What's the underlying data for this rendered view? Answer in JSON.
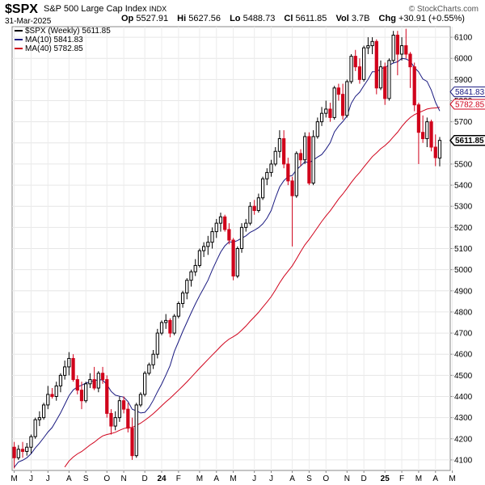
{
  "header": {
    "symbol": "$SPX",
    "description": "S&P 500 Large Cap Index",
    "exchange": "INDX",
    "brand": "© StockCharts.com",
    "date": "31-Mar-2025",
    "ohlc": [
      {
        "label": "Op",
        "value": "5527.91"
      },
      {
        "label": "Hi",
        "value": "5627.56"
      },
      {
        "label": "Lo",
        "value": "5488.73"
      },
      {
        "label": "Cl",
        "value": "5611.85"
      },
      {
        "label": "Vol",
        "value": "3.7B"
      },
      {
        "label": "Chg",
        "value": "+30.91 (+0.55%)"
      }
    ]
  },
  "legend": [
    {
      "label": "$SPX (Weekly) 5611.85",
      "color": "#000000"
    },
    {
      "label": "MA(10) 5841.83",
      "color": "#1a1a80"
    },
    {
      "label": "MA(40) 5782.85",
      "color": "#d0021b"
    }
  ],
  "chart_data": {
    "type": "candlestick",
    "ylim": [
      4050,
      6150
    ],
    "y_ticks": [
      4100,
      4200,
      4300,
      4400,
      4500,
      4600,
      4700,
      4800,
      4900,
      5000,
      5100,
      5200,
      5300,
      5400,
      5500,
      5600,
      5700,
      5800,
      5900,
      6000,
      6100
    ],
    "y_tick_labels": [
      "4100",
      "4200",
      "4300",
      "4400",
      "4500",
      "4600",
      "4700",
      "4800",
      "4900",
      "5000",
      "5100",
      "5200",
      "5300",
      "5400",
      "5500",
      "5600",
      "5700",
      "5800",
      "5900",
      "6000",
      "6100"
    ],
    "x_ticks": [
      {
        "week": 0,
        "label": "M"
      },
      {
        "week": 4,
        "label": "J"
      },
      {
        "week": 8,
        "label": "J"
      },
      {
        "week": 13,
        "label": "A"
      },
      {
        "week": 17,
        "label": "S"
      },
      {
        "week": 22,
        "label": "O"
      },
      {
        "week": 26,
        "label": "N"
      },
      {
        "week": 31,
        "label": "D"
      },
      {
        "week": 35,
        "label": "24"
      },
      {
        "week": 39,
        "label": "F"
      },
      {
        "week": 44,
        "label": "M"
      },
      {
        "week": 48,
        "label": "A"
      },
      {
        "week": 52,
        "label": "M"
      },
      {
        "week": 57,
        "label": "J"
      },
      {
        "week": 61,
        "label": "J"
      },
      {
        "week": 66,
        "label": "A"
      },
      {
        "week": 70,
        "label": "S"
      },
      {
        "week": 74,
        "label": "O"
      },
      {
        "week": 79,
        "label": "N"
      },
      {
        "week": 83,
        "label": "D"
      },
      {
        "week": 88,
        "label": "25"
      },
      {
        "week": 92,
        "label": "F"
      },
      {
        "week": 96,
        "label": "M"
      },
      {
        "week": 100,
        "label": "A"
      },
      {
        "week": 104,
        "label": "M"
      }
    ],
    "price_tags": [
      {
        "value": 5841.83,
        "label": "5841.83",
        "color": "#1a1a80"
      },
      {
        "value": 5782.85,
        "label": "5782.85",
        "color": "#d0021b"
      },
      {
        "value": 5611.85,
        "label": "5611.85",
        "color": "#000000"
      }
    ],
    "candles": [
      {
        "o": 4160,
        "h": 4185,
        "l": 4060,
        "c": 4110
      },
      {
        "o": 4110,
        "h": 4170,
        "l": 4100,
        "c": 4150
      },
      {
        "o": 4150,
        "h": 4185,
        "l": 4110,
        "c": 4140
      },
      {
        "o": 4140,
        "h": 4180,
        "l": 4120,
        "c": 4160
      },
      {
        "o": 4160,
        "h": 4220,
        "l": 4130,
        "c": 4210
      },
      {
        "o": 4210,
        "h": 4300,
        "l": 4200,
        "c": 4290
      },
      {
        "o": 4290,
        "h": 4330,
        "l": 4260,
        "c": 4300
      },
      {
        "o": 4300,
        "h": 4370,
        "l": 4290,
        "c": 4360
      },
      {
        "o": 4360,
        "h": 4450,
        "l": 4340,
        "c": 4410
      },
      {
        "o": 4410,
        "h": 4440,
        "l": 4390,
        "c": 4400
      },
      {
        "o": 4400,
        "h": 4470,
        "l": 4380,
        "c": 4450
      },
      {
        "o": 4450,
        "h": 4510,
        "l": 4420,
        "c": 4500
      },
      {
        "o": 4500,
        "h": 4570,
        "l": 4480,
        "c": 4540
      },
      {
        "o": 4540,
        "h": 4610,
        "l": 4500,
        "c": 4580
      },
      {
        "o": 4580,
        "h": 4600,
        "l": 4470,
        "c": 4480
      },
      {
        "o": 4480,
        "h": 4500,
        "l": 4410,
        "c": 4430
      },
      {
        "o": 4430,
        "h": 4470,
        "l": 4340,
        "c": 4380
      },
      {
        "o": 4380,
        "h": 4470,
        "l": 4370,
        "c": 4460
      },
      {
        "o": 4460,
        "h": 4510,
        "l": 4440,
        "c": 4480
      },
      {
        "o": 4480,
        "h": 4540,
        "l": 4430,
        "c": 4440
      },
      {
        "o": 4440,
        "h": 4520,
        "l": 4420,
        "c": 4510
      },
      {
        "o": 4510,
        "h": 4540,
        "l": 4460,
        "c": 4480
      },
      {
        "o": 4480,
        "h": 4500,
        "l": 4300,
        "c": 4320
      },
      {
        "o": 4320,
        "h": 4340,
        "l": 4220,
        "c": 4260
      },
      {
        "o": 4260,
        "h": 4330,
        "l": 4240,
        "c": 4300
      },
      {
        "o": 4300,
        "h": 4400,
        "l": 4280,
        "c": 4380
      },
      {
        "o": 4380,
        "h": 4400,
        "l": 4320,
        "c": 4340
      },
      {
        "o": 4340,
        "h": 4370,
        "l": 4230,
        "c": 4250
      },
      {
        "o": 4250,
        "h": 4300,
        "l": 4100,
        "c": 4120
      },
      {
        "o": 4120,
        "h": 4370,
        "l": 4110,
        "c": 4360
      },
      {
        "o": 4360,
        "h": 4420,
        "l": 4350,
        "c": 4410
      },
      {
        "o": 4410,
        "h": 4520,
        "l": 4400,
        "c": 4510
      },
      {
        "o": 4510,
        "h": 4560,
        "l": 4500,
        "c": 4550
      },
      {
        "o": 4550,
        "h": 4620,
        "l": 4530,
        "c": 4600
      },
      {
        "o": 4600,
        "h": 4720,
        "l": 4580,
        "c": 4700
      },
      {
        "o": 4700,
        "h": 4760,
        "l": 4690,
        "c": 4750
      },
      {
        "o": 4750,
        "h": 4790,
        "l": 4720,
        "c": 4760
      },
      {
        "o": 4760,
        "h": 4770,
        "l": 4680,
        "c": 4700
      },
      {
        "o": 4700,
        "h": 4790,
        "l": 4690,
        "c": 4780
      },
      {
        "o": 4780,
        "h": 4850,
        "l": 4770,
        "c": 4840
      },
      {
        "o": 4840,
        "h": 4900,
        "l": 4820,
        "c": 4890
      },
      {
        "o": 4890,
        "h": 4960,
        "l": 4860,
        "c": 4950
      },
      {
        "o": 4950,
        "h": 5000,
        "l": 4920,
        "c": 4990
      },
      {
        "o": 4990,
        "h": 5050,
        "l": 4970,
        "c": 5020
      },
      {
        "o": 5020,
        "h": 5100,
        "l": 5010,
        "c": 5090
      },
      {
        "o": 5090,
        "h": 5130,
        "l": 5060,
        "c": 5110
      },
      {
        "o": 5110,
        "h": 5160,
        "l": 5070,
        "c": 5130
      },
      {
        "o": 5130,
        "h": 5200,
        "l": 5100,
        "c": 5180
      },
      {
        "o": 5180,
        "h": 5240,
        "l": 5150,
        "c": 5220
      },
      {
        "o": 5220,
        "h": 5270,
        "l": 5180,
        "c": 5250
      },
      {
        "o": 5250,
        "h": 5260,
        "l": 5180,
        "c": 5190
      },
      {
        "o": 5190,
        "h": 5220,
        "l": 5120,
        "c": 5140
      },
      {
        "o": 5140,
        "h": 5150,
        "l": 4950,
        "c": 4970
      },
      {
        "o": 4970,
        "h": 5110,
        "l": 4960,
        "c": 5100
      },
      {
        "o": 5100,
        "h": 5220,
        "l": 5080,
        "c": 5200
      },
      {
        "o": 5200,
        "h": 5240,
        "l": 5180,
        "c": 5220
      },
      {
        "o": 5220,
        "h": 5320,
        "l": 5210,
        "c": 5300
      },
      {
        "o": 5300,
        "h": 5330,
        "l": 5260,
        "c": 5280
      },
      {
        "o": 5280,
        "h": 5360,
        "l": 5270,
        "c": 5340
      },
      {
        "o": 5340,
        "h": 5440,
        "l": 5330,
        "c": 5430
      },
      {
        "o": 5430,
        "h": 5480,
        "l": 5400,
        "c": 5460
      },
      {
        "o": 5460,
        "h": 5520,
        "l": 5440,
        "c": 5500
      },
      {
        "o": 5500,
        "h": 5580,
        "l": 5490,
        "c": 5560
      },
      {
        "o": 5560,
        "h": 5660,
        "l": 5530,
        "c": 5620
      },
      {
        "o": 5620,
        "h": 5660,
        "l": 5480,
        "c": 5500
      },
      {
        "o": 5500,
        "h": 5530,
        "l": 5400,
        "c": 5420
      },
      {
        "o": 5420,
        "h": 5440,
        "l": 5110,
        "c": 5350
      },
      {
        "o": 5350,
        "h": 5560,
        "l": 5340,
        "c": 5550
      },
      {
        "o": 5550,
        "h": 5570,
        "l": 5490,
        "c": 5520
      },
      {
        "o": 5520,
        "h": 5650,
        "l": 5500,
        "c": 5630
      },
      {
        "o": 5630,
        "h": 5650,
        "l": 5400,
        "c": 5410
      },
      {
        "o": 5410,
        "h": 5660,
        "l": 5400,
        "c": 5630
      },
      {
        "o": 5630,
        "h": 5720,
        "l": 5620,
        "c": 5700
      },
      {
        "o": 5700,
        "h": 5770,
        "l": 5680,
        "c": 5740
      },
      {
        "o": 5740,
        "h": 5800,
        "l": 5720,
        "c": 5760
      },
      {
        "o": 5760,
        "h": 5790,
        "l": 5700,
        "c": 5720
      },
      {
        "o": 5720,
        "h": 5870,
        "l": 5710,
        "c": 5860
      },
      {
        "o": 5860,
        "h": 5880,
        "l": 5800,
        "c": 5830
      },
      {
        "o": 5830,
        "h": 5880,
        "l": 5710,
        "c": 5730
      },
      {
        "o": 5730,
        "h": 5900,
        "l": 5720,
        "c": 5890
      },
      {
        "o": 5890,
        "h": 6020,
        "l": 5880,
        "c": 6010
      },
      {
        "o": 6010,
        "h": 6040,
        "l": 5940,
        "c": 5960
      },
      {
        "o": 5960,
        "h": 6000,
        "l": 5880,
        "c": 5900
      },
      {
        "o": 5900,
        "h": 6060,
        "l": 5890,
        "c": 6050
      },
      {
        "o": 6050,
        "h": 6100,
        "l": 6020,
        "c": 6060
      },
      {
        "o": 6060,
        "h": 6100,
        "l": 6020,
        "c": 6080
      },
      {
        "o": 6080,
        "h": 6090,
        "l": 5830,
        "c": 5860
      },
      {
        "o": 5860,
        "h": 5990,
        "l": 5850,
        "c": 5960
      },
      {
        "o": 5960,
        "h": 5980,
        "l": 5780,
        "c": 5810
      },
      {
        "o": 5810,
        "h": 6000,
        "l": 5800,
        "c": 5990
      },
      {
        "o": 5990,
        "h": 6130,
        "l": 5980,
        "c": 6110
      },
      {
        "o": 6110,
        "h": 6130,
        "l": 5920,
        "c": 6020
      },
      {
        "o": 6020,
        "h": 6100,
        "l": 5990,
        "c": 6060
      },
      {
        "o": 6060,
        "h": 6140,
        "l": 6000,
        "c": 6020
      },
      {
        "o": 6020,
        "h": 6030,
        "l": 5860,
        "c": 5960
      },
      {
        "o": 5960,
        "h": 5980,
        "l": 5750,
        "c": 5780
      },
      {
        "o": 5780,
        "h": 5790,
        "l": 5500,
        "c": 5650
      },
      {
        "o": 5650,
        "h": 5730,
        "l": 5600,
        "c": 5620
      },
      {
        "o": 5620,
        "h": 5720,
        "l": 5580,
        "c": 5700
      },
      {
        "o": 5700,
        "h": 5710,
        "l": 5560,
        "c": 5580
      },
      {
        "o": 5580,
        "h": 5640,
        "l": 5490,
        "c": 5530
      },
      {
        "o": 5528,
        "h": 5628,
        "l": 5489,
        "c": 5612
      }
    ]
  }
}
